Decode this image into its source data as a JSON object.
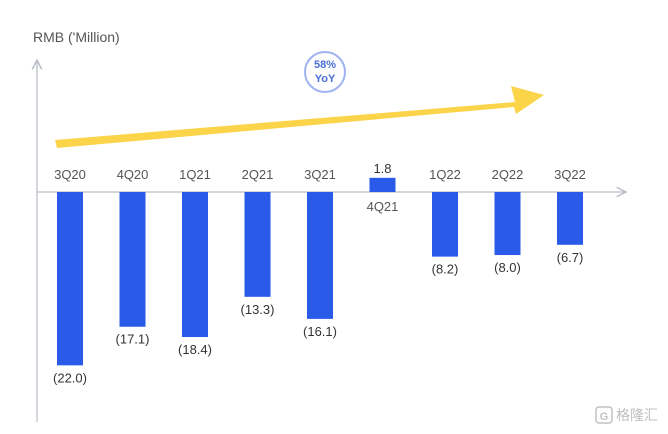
{
  "chart_data": {
    "type": "bar",
    "ylabel": "RMB ('Million)",
    "categories": [
      "3Q20",
      "4Q20",
      "1Q21",
      "2Q21",
      "3Q21",
      "4Q21",
      "1Q22",
      "2Q22",
      "3Q22"
    ],
    "values": [
      -22.0,
      -17.1,
      -18.4,
      -13.3,
      -16.1,
      1.8,
      -8.2,
      -8.0,
      -6.7
    ],
    "value_labels": [
      "(22.0)",
      "(17.1)",
      "(18.4)",
      "(13.3)",
      "(16.1)",
      "1.8",
      "(8.2)",
      "(8.0)",
      "(6.7)"
    ],
    "bar_color": "#2a5ae8",
    "annotation": {
      "line1": "58%",
      "line2": "YoY",
      "arrow_color": "#fbd44a"
    }
  },
  "watermark": {
    "text": "格隆汇",
    "icon": "g-logo-icon"
  }
}
